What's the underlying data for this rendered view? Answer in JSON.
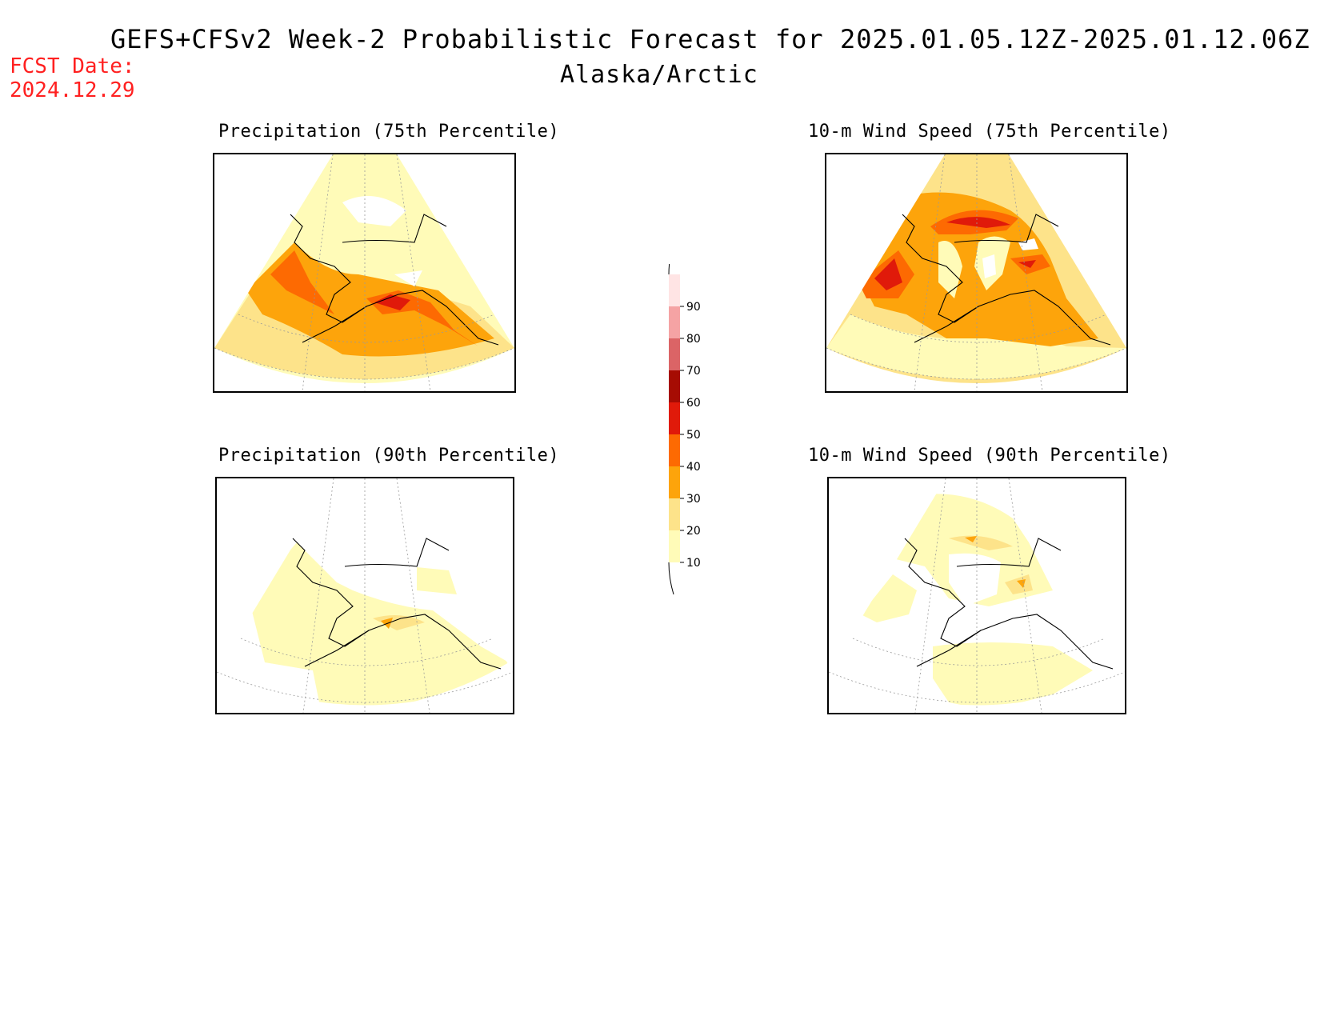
{
  "header": {
    "title": "GEFS+CFSv2 Week-2 Probabilistic Forecast for 2025.01.05.12Z-2025.01.12.06Z",
    "region": "Alaska/Arctic",
    "fcst_label": "FCST Date:",
    "fcst_date": "2024.12.29"
  },
  "panels": [
    {
      "title": "Precipitation (75th Percentile)",
      "variable": "precipitation",
      "percentile": 75
    },
    {
      "title": "10-m Wind Speed (75th Percentile)",
      "variable": "wind",
      "percentile": 75
    },
    {
      "title": "Precipitation (90th Percentile)",
      "variable": "precipitation",
      "percentile": 90
    },
    {
      "title": "10-m Wind Speed (90th Percentile)",
      "variable": "wind",
      "percentile": 90
    }
  ],
  "colorbar": {
    "levels": [
      "10",
      "20",
      "30",
      "40",
      "50",
      "60",
      "70",
      "80",
      "90"
    ],
    "colors": [
      "#fffbb8",
      "#fde38a",
      "#fda40b",
      "#fd6a02",
      "#e01a0a",
      "#a60c03",
      "#db6466",
      "#f5a3a4",
      "#ffe4e4"
    ]
  }
}
